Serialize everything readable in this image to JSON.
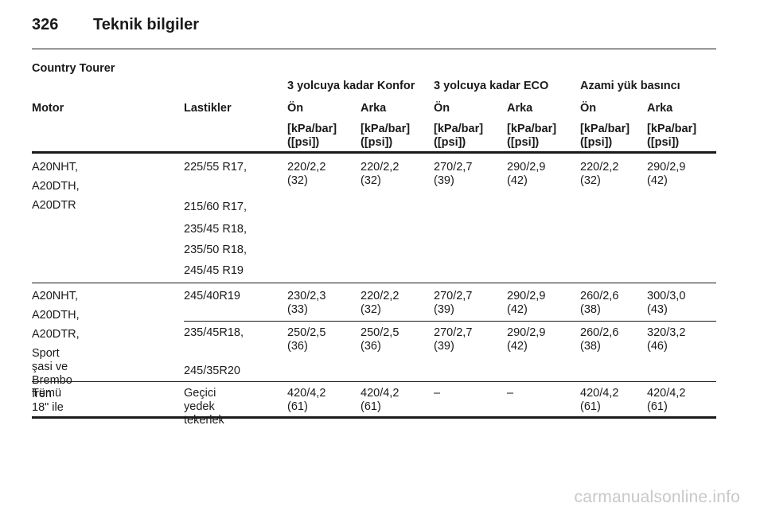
{
  "header": {
    "page_number": "326",
    "title": "Teknik bilgiler"
  },
  "section_title": "Country Tourer",
  "group_headers": {
    "konfor": "3 yolcuya kadar Konfor",
    "eco": "3 yolcuya kadar ECO",
    "azami": "Azami yük basıncı"
  },
  "columns": {
    "motor": "Motor",
    "lastikler": "Lastikler",
    "front": "Ön",
    "rear": "Arka",
    "unit": "[kPa/bar]\n([psi])"
  },
  "rows": [
    {
      "motor": [
        "A20NHT,",
        "A20DTH,",
        "A20DTR"
      ],
      "tires": [
        "225/55 R17,",
        "215/60 R17,",
        "235/45 R18,",
        "235/50 R18,",
        "245/45 R19"
      ],
      "values": [
        "220/2,2\n(32)",
        "220/2,2\n(32)",
        "270/2,7\n(39)",
        "290/2,9\n(42)",
        "220/2,2\n(32)",
        "290/2,9\n(42)"
      ]
    },
    {
      "motor": [
        "A20NHT,",
        "A20DTH,",
        "A20DTR,",
        "Sport şasi ve Brembo fren\n18\" ile"
      ],
      "sub": [
        {
          "tires": [
            "245/40R19"
          ],
          "values": [
            "230/2,3\n(33)",
            "220/2,2\n(32)",
            "270/2,7\n(39)",
            "290/2,9\n(42)",
            "260/2,6\n(38)",
            "300/3,0\n(43)"
          ]
        },
        {
          "tires": [
            "235/45R18,",
            "245/35R20"
          ],
          "values": [
            "250/2,5\n(36)",
            "250/2,5\n(36)",
            "270/2,7\n(39)",
            "290/2,9\n(42)",
            "260/2,6\n(38)",
            "320/3,2\n(46)"
          ]
        }
      ]
    },
    {
      "motor": [
        "Tümü"
      ],
      "tires": [
        "Geçici yedek\ntekerlek"
      ],
      "values": [
        "420/4,2\n(61)",
        "420/4,2\n(61)",
        "–",
        "–",
        "420/4,2\n(61)",
        "420/4,2\n(61)"
      ]
    }
  ],
  "watermark": "carmanualsonline.info"
}
